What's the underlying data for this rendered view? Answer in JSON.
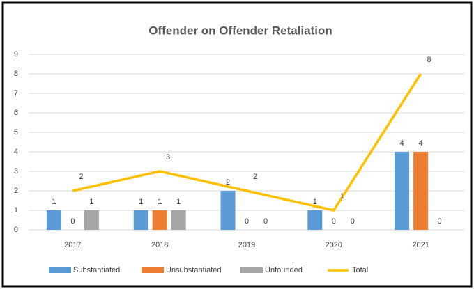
{
  "chart_data": {
    "type": "bar",
    "title": "Offender on Offender Retaliation",
    "categories": [
      "2017",
      "2018",
      "2019",
      "2020",
      "2021"
    ],
    "series": [
      {
        "name": "Substantiated",
        "type": "bar",
        "color": "#5b9bd5",
        "values": [
          1,
          1,
          2,
          1,
          4
        ]
      },
      {
        "name": "Unsubstantiated",
        "type": "bar",
        "color": "#ed7d31",
        "values": [
          0,
          1,
          0,
          0,
          4
        ]
      },
      {
        "name": "Unfounded",
        "type": "bar",
        "color": "#a5a5a5",
        "values": [
          1,
          1,
          0,
          0,
          0
        ]
      },
      {
        "name": "Total",
        "type": "line",
        "color": "#ffc000",
        "values": [
          2,
          3,
          2,
          1,
          8
        ]
      }
    ],
    "ylim": [
      0,
      9
    ],
    "yticks": [
      0,
      1,
      2,
      3,
      4,
      5,
      6,
      7,
      8,
      9
    ],
    "grid": true,
    "legend": "bottom"
  }
}
